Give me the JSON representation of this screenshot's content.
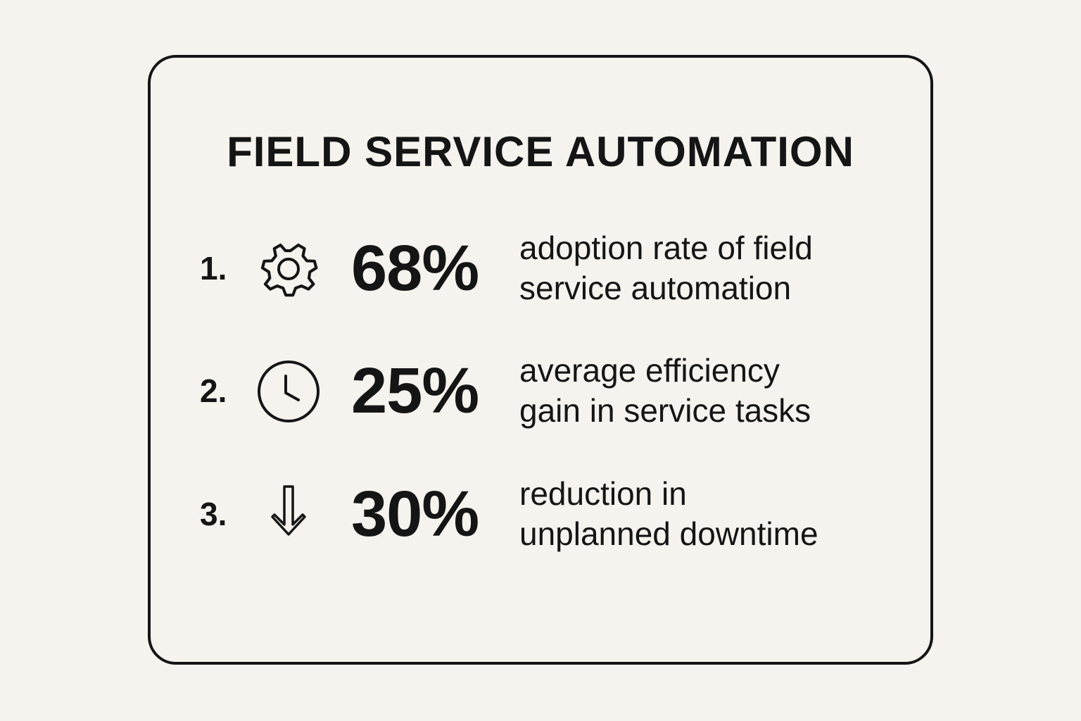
{
  "title": "FIELD SERVICE AUTOMATION",
  "stats": [
    {
      "number": "1.",
      "icon": "gear-icon",
      "value": "68%",
      "description_lines": [
        "adoption rate of field",
        "service automation"
      ]
    },
    {
      "number": "2.",
      "icon": "clock-icon",
      "value": "25%",
      "description_lines": [
        "average efficiency",
        "gain in service tasks"
      ]
    },
    {
      "number": "3.",
      "icon": "down-arrow-icon",
      "value": "30%",
      "description_lines": [
        "reduction in",
        "unplanned downtime"
      ]
    }
  ],
  "colors": {
    "background": "#f6f3ee",
    "ink": "#151515"
  }
}
